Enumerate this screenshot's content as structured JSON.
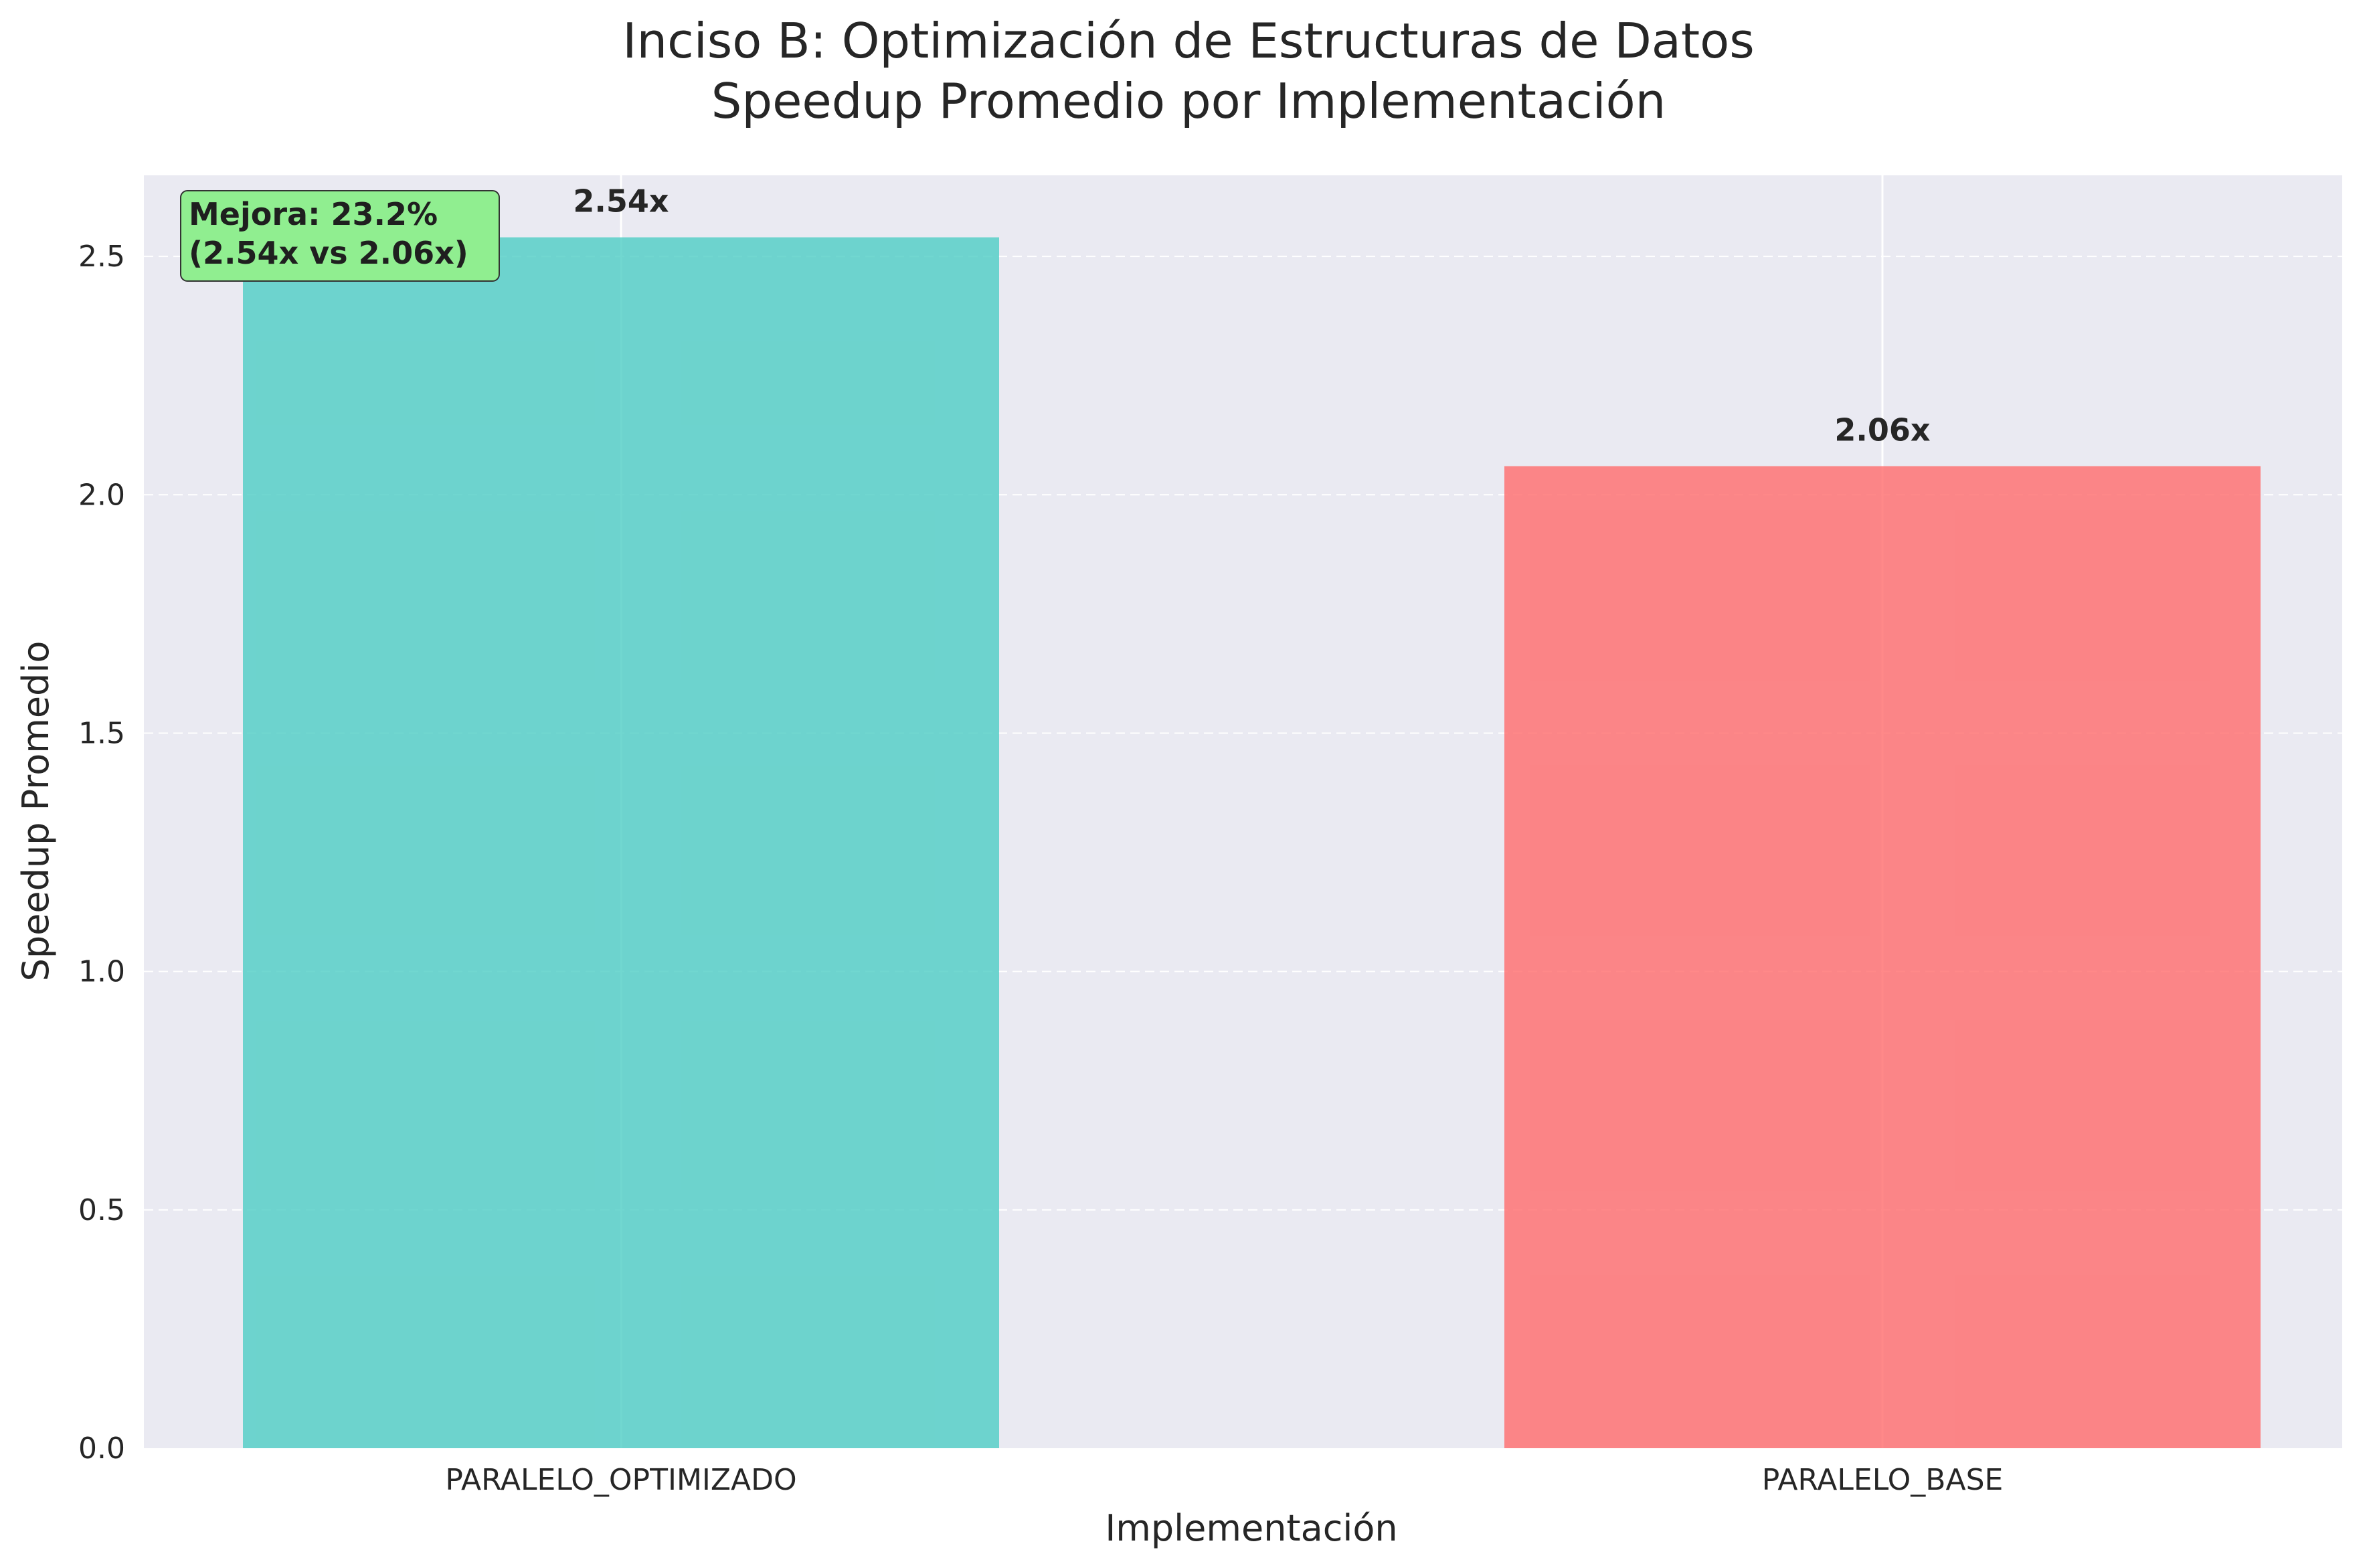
{
  "chart_data": {
    "type": "bar",
    "title_lines": [
      "Inciso B: Optimización de Estructuras de Datos",
      "Speedup Promedio por Implementación"
    ],
    "xlabel": "Implementación",
    "ylabel": "Speedup Promedio",
    "categories": [
      "PARALELO_OPTIMIZADO",
      "PARALELO_BASE"
    ],
    "values": [
      2.54,
      2.06
    ],
    "value_labels": [
      "2.54x",
      "2.06x"
    ],
    "bar_colors": [
      "#4ECDC4",
      "#FF6B6B"
    ],
    "ylim": [
      0,
      2.67
    ],
    "yticks": [
      0.0,
      0.5,
      1.0,
      1.5,
      2.0,
      2.5
    ],
    "ytick_labels": [
      "0.0",
      "0.5",
      "1.0",
      "1.5",
      "2.0",
      "2.5"
    ],
    "grid": true,
    "annotation": {
      "lines": [
        "Mejora: 23.2%",
        "(2.54x vs 2.06x)"
      ],
      "background": "#90EE90"
    },
    "plot_background": "#EAEAF2"
  }
}
